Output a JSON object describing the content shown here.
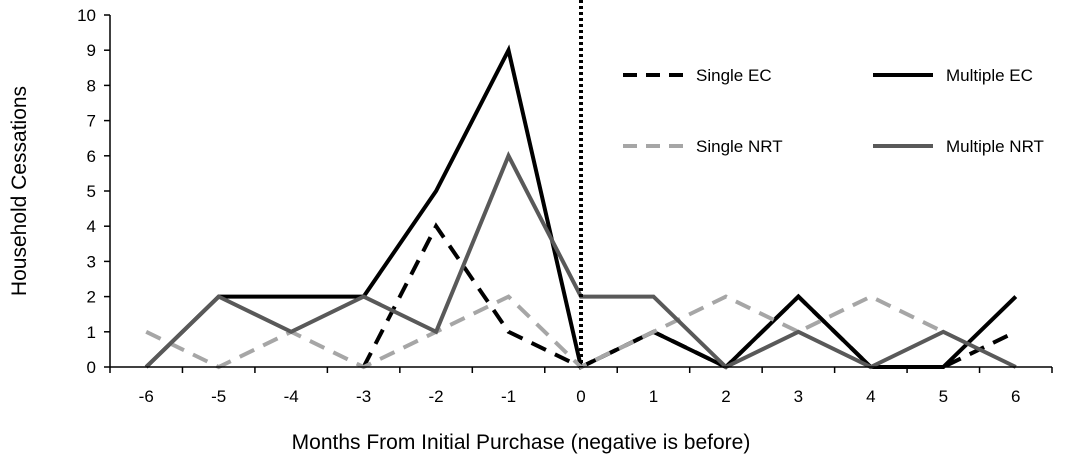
{
  "chart_data": {
    "type": "line",
    "x": [
      -6,
      -5,
      -4,
      -3,
      -2,
      -1,
      0,
      1,
      2,
      3,
      4,
      5,
      6
    ],
    "xlabel": "Months From Initial Purchase (negative is before)",
    "ylabel": "Household Cessations",
    "ylim": [
      0,
      10
    ],
    "xlim": [
      -6.5,
      6.5
    ],
    "yticks": [
      0,
      1,
      2,
      3,
      4,
      5,
      6,
      7,
      8,
      9,
      10
    ],
    "xtick_labels": [
      "-6",
      "-5",
      "-4",
      "-3",
      "-2",
      "-1",
      "0",
      "1",
      "2",
      "3",
      "4",
      "5",
      "6"
    ],
    "grid": false,
    "legend_position": "top-right",
    "reference_line": {
      "x": 0,
      "style": "dotted",
      "color": "#000000"
    },
    "series": [
      {
        "name": "Single EC",
        "style": "dashed",
        "color": "#000000",
        "values": [
          null,
          null,
          null,
          0,
          4,
          1,
          0,
          1,
          0,
          2,
          0,
          0,
          1
        ]
      },
      {
        "name": "Multiple EC",
        "style": "solid",
        "color": "#000000",
        "values": [
          0,
          2,
          2,
          2,
          5,
          9,
          0,
          1,
          0,
          2,
          0,
          0,
          2
        ]
      },
      {
        "name": "Single NRT",
        "style": "dashed",
        "color": "#a6a6a6",
        "values": [
          1,
          0,
          1,
          0,
          1,
          2,
          0,
          1,
          2,
          1,
          2,
          1,
          null
        ]
      },
      {
        "name": "Multiple NRT",
        "style": "solid",
        "color": "#595959",
        "values": [
          0,
          2,
          1,
          2,
          1,
          6,
          2,
          2,
          0,
          1,
          0,
          1,
          0
        ]
      }
    ]
  }
}
